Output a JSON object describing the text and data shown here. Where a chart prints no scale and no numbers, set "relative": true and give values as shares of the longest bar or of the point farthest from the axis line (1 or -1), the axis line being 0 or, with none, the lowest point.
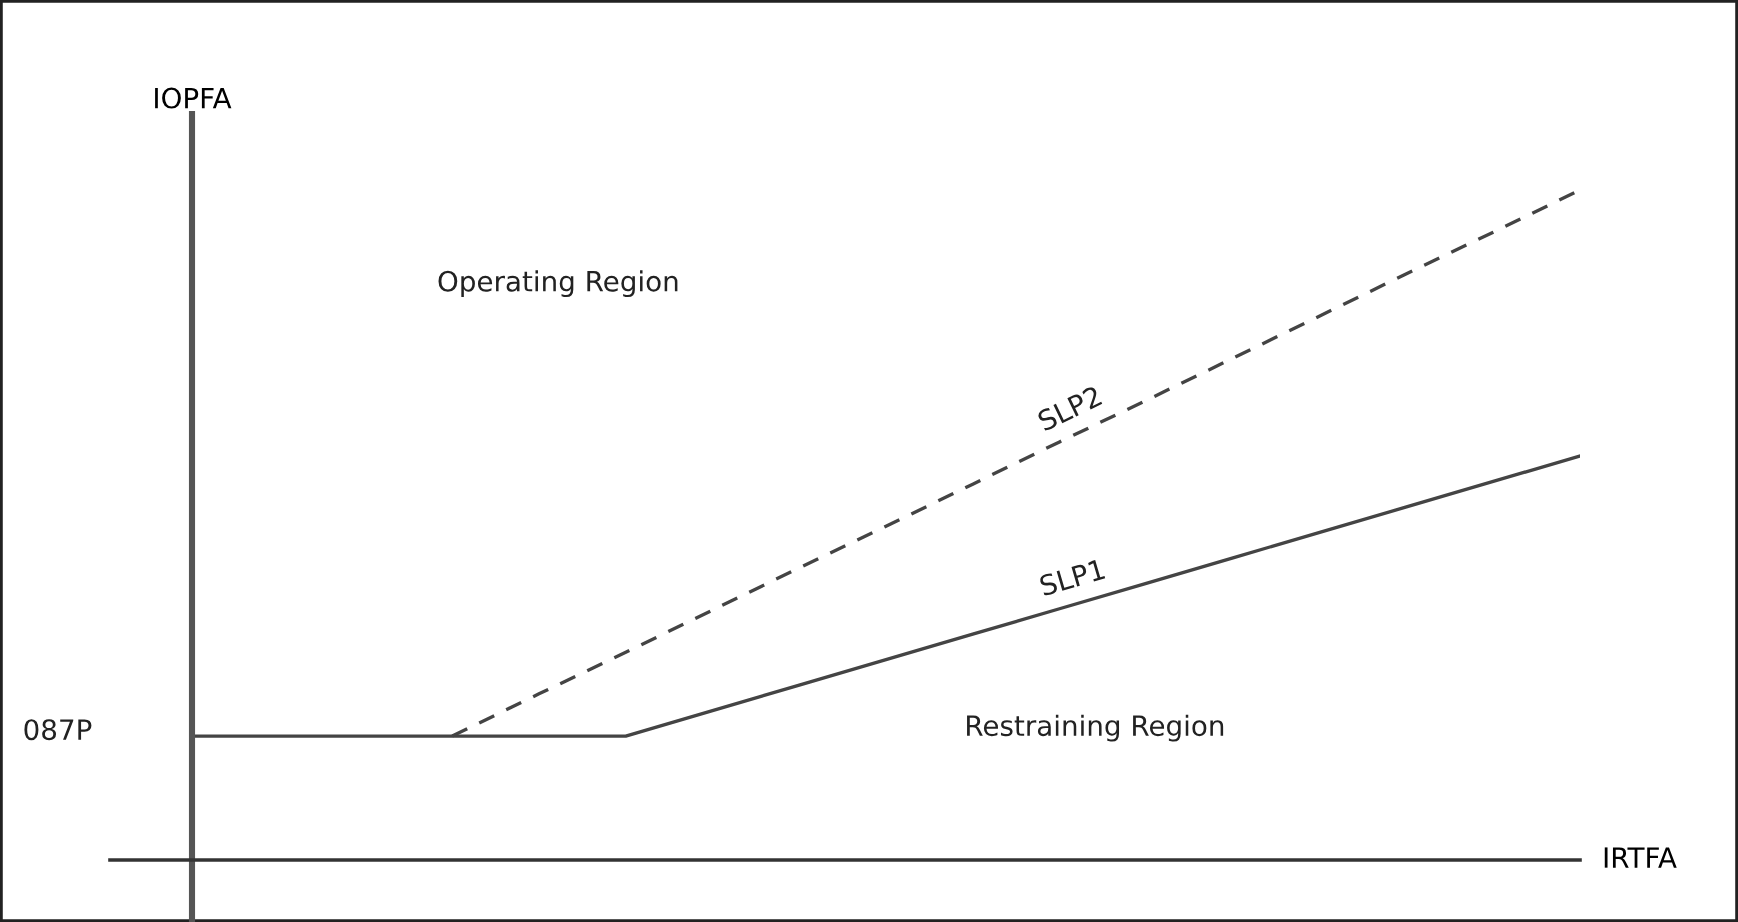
{
  "chart_data": {
    "type": "line",
    "relative": true,
    "xlabel": "IRTFA",
    "ylabel": "IOPFA",
    "grid": false,
    "legend": false,
    "annotations": [
      "Operating Region",
      "Restraining Region",
      "087P"
    ],
    "categories": [
      null,
      null,
      null,
      null,
      null,
      null,
      null,
      null,
      null,
      null,
      null,
      null,
      null,
      null,
      null,
      null,
      null
    ],
    "series": [
      {
        "name": "SLP2",
        "color": "#444444",
        "line_style": "dashed",
        "values": [
          null,
          null,
          null,
          0.185,
          0.248,
          0.31,
          0.373,
          0.436,
          0.498,
          0.561,
          0.624,
          0.686,
          0.749,
          0.812,
          0.875,
          0.937,
          1
        ]
      },
      {
        "name": "SLP1",
        "color": "#444444",
        "line_style": "solid",
        "values": [
          0.185,
          0.185,
          0.185,
          0.185,
          0.185,
          0.185,
          0.223,
          0.261,
          0.299,
          0.337,
          0.375,
          0.413,
          0.451,
          0.489,
          0.527,
          0.565,
          0.603
        ]
      }
    ]
  }
}
